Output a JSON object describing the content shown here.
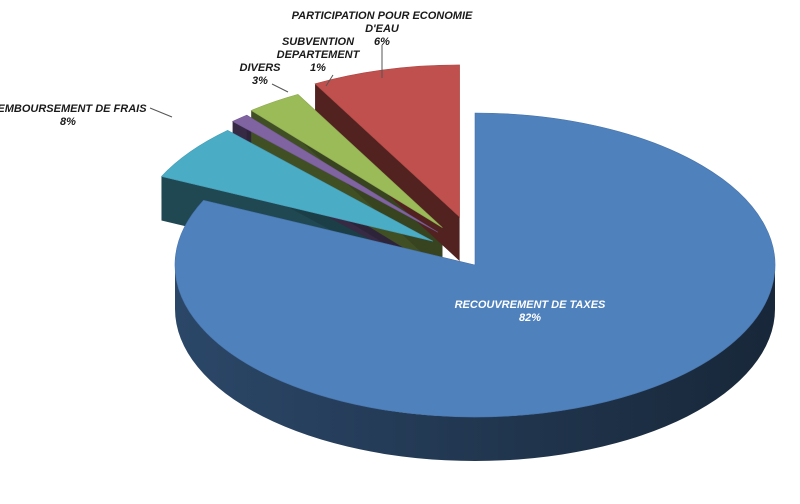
{
  "chart_data": {
    "type": "pie",
    "title": "",
    "style": "3d-exploded",
    "slices": [
      {
        "name": "RECOUVREMENT DE TAXES",
        "pct_label": "82%",
        "value": 82,
        "color": "#4f81bd"
      },
      {
        "name": "PARTICIPATION POUR ECONOMIE D'EAU",
        "pct_label": "6%",
        "value": 6,
        "color": "#4bacc6"
      },
      {
        "name": "SUBVENTION DEPARTEMENT",
        "pct_label": "1%",
        "value": 1,
        "color": "#8064a2"
      },
      {
        "name": "DIVERS",
        "pct_label": "3%",
        "value": 3,
        "color": "#9bbb59"
      },
      {
        "name": "REMBOURSEMENT  DE FRAIS",
        "pct_label": "8%",
        "value": 8,
        "color": "#c0504d"
      }
    ]
  }
}
